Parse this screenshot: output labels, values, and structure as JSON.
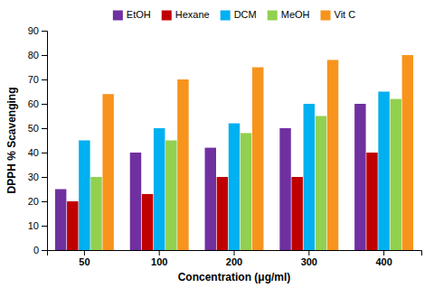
{
  "chart_data": {
    "type": "bar",
    "categories": [
      "50",
      "100",
      "200",
      "300",
      "400"
    ],
    "series": [
      {
        "name": "EtOH",
        "color": "#7030A0",
        "values": [
          25,
          40,
          42,
          50,
          60
        ]
      },
      {
        "name": "Hexane",
        "color": "#C00000",
        "values": [
          20,
          23,
          30,
          30,
          40
        ]
      },
      {
        "name": "DCM",
        "color": "#00B0F0",
        "values": [
          45,
          50,
          52,
          60,
          65
        ]
      },
      {
        "name": "MeOH",
        "color": "#92D050",
        "values": [
          30,
          45,
          48,
          55,
          62
        ]
      },
      {
        "name": "Vit C",
        "color": "#F7941D",
        "values": [
          64,
          70,
          75,
          78,
          80
        ]
      }
    ],
    "xlabel": "Concentration (μg/ml)",
    "ylabel": "DPPH % Scavenging",
    "ylim": [
      0,
      90
    ],
    "yticks": [
      0,
      10,
      20,
      30,
      40,
      50,
      60,
      70,
      80,
      90
    ],
    "grid": false,
    "legend": "top"
  }
}
